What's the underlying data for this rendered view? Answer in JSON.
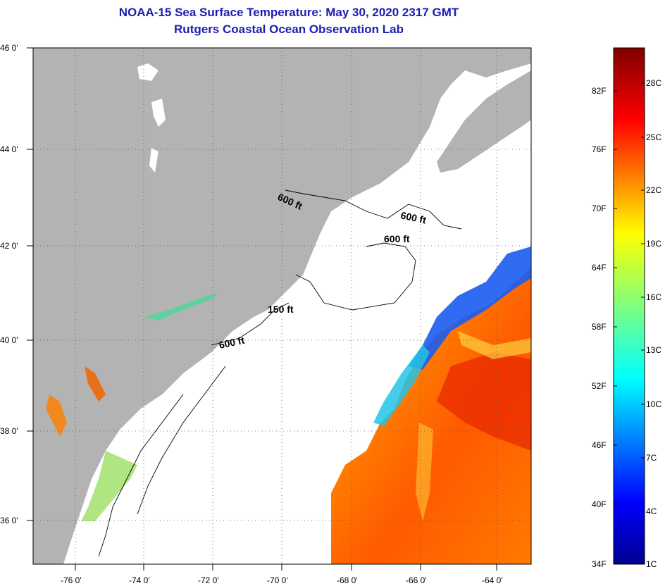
{
  "title": "NOAA-15 Sea Surface Temperature:  May 30, 2020 2317 GMT",
  "subtitle": "Rutgers Coastal Ocean Observation Lab",
  "lat_labels": [
    "46 0'",
    "44 0'",
    "42 0'",
    "40 0'",
    "38 0'",
    "36 0'"
  ],
  "lon_labels": [
    "-76 0'",
    "-74 0'",
    "-72 0'",
    "-70 0'",
    "-68 0'",
    "-66 0'",
    "-64 0'"
  ],
  "depth_labels": [
    "600 ft",
    "600 ft",
    "600 ft",
    "150 ft",
    "600 ft"
  ],
  "colorbar": {
    "fahrenheit": [
      "82F",
      "76F",
      "70F",
      "64F",
      "58F",
      "52F",
      "46F",
      "40F",
      "34F"
    ],
    "celsius": [
      "28C",
      "25C",
      "22C",
      "19C",
      "16C",
      "13C",
      "10C",
      "7C",
      "4C",
      "1C"
    ]
  },
  "colors": {
    "title": "#1c1cb4",
    "land": "#b3b3b3",
    "no_data": "#ffffff",
    "cold": "#00008f",
    "warm": "#7f0000"
  }
}
